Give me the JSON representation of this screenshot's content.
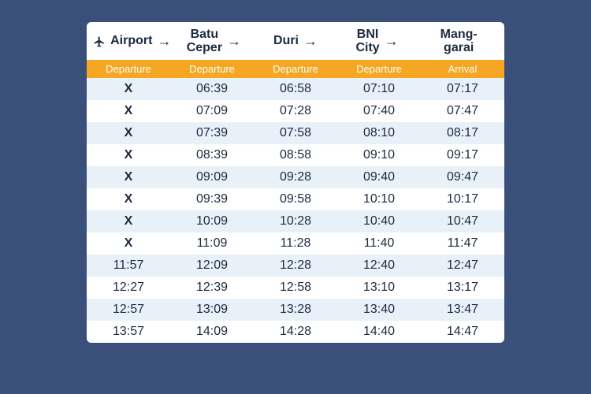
{
  "background_color": "#3a4f7a",
  "card_background": "#ffffff",
  "schedule": {
    "type": "table",
    "stations": [
      {
        "name": "Airport",
        "two_line": false,
        "has_icon": true,
        "has_arrow": true
      },
      {
        "name": "Batu\nCeper",
        "two_line": true,
        "has_icon": false,
        "has_arrow": true
      },
      {
        "name": "Duri",
        "two_line": false,
        "has_icon": false,
        "has_arrow": true
      },
      {
        "name": "BNI\nCity",
        "two_line": true,
        "has_icon": false,
        "has_arrow": true
      },
      {
        "name": "Mang-\ngarai",
        "two_line": true,
        "has_icon": false,
        "has_arrow": false
      }
    ],
    "sub_headers": [
      "Departure",
      "Departure",
      "Departure",
      "Departure",
      "Arrival"
    ],
    "sub_header_bg": "#f5a623",
    "sub_header_color": "#ffffff",
    "row_colors": {
      "odd": "#ffffff",
      "even": "#e8f1f8"
    },
    "text_color": "#1a2a40",
    "font_size_data": 16,
    "font_size_station": 16,
    "font_size_subheader": 13,
    "rows": [
      [
        "X",
        "06:39",
        "06:58",
        "07:10",
        "07:17"
      ],
      [
        "X",
        "07:09",
        "07:28",
        "07:40",
        "07:47"
      ],
      [
        "X",
        "07:39",
        "07:58",
        "08:10",
        "08:17"
      ],
      [
        "X",
        "08:39",
        "08:58",
        "09:10",
        "09:17"
      ],
      [
        "X",
        "09:09",
        "09:28",
        "09:40",
        "09:47"
      ],
      [
        "X",
        "09:39",
        "09:58",
        "10:10",
        "10:17"
      ],
      [
        "X",
        "10:09",
        "10:28",
        "10:40",
        "10:47"
      ],
      [
        "X",
        "11:09",
        "11:28",
        "11:40",
        "11:47"
      ],
      [
        "11:57",
        "12:09",
        "12:28",
        "12:40",
        "12:47"
      ],
      [
        "12:27",
        "12:39",
        "12:58",
        "13:10",
        "13:17"
      ],
      [
        "12:57",
        "13:09",
        "13:28",
        "13:40",
        "13:47"
      ],
      [
        "13:57",
        "14:09",
        "14:28",
        "14:40",
        "14:47"
      ]
    ]
  }
}
